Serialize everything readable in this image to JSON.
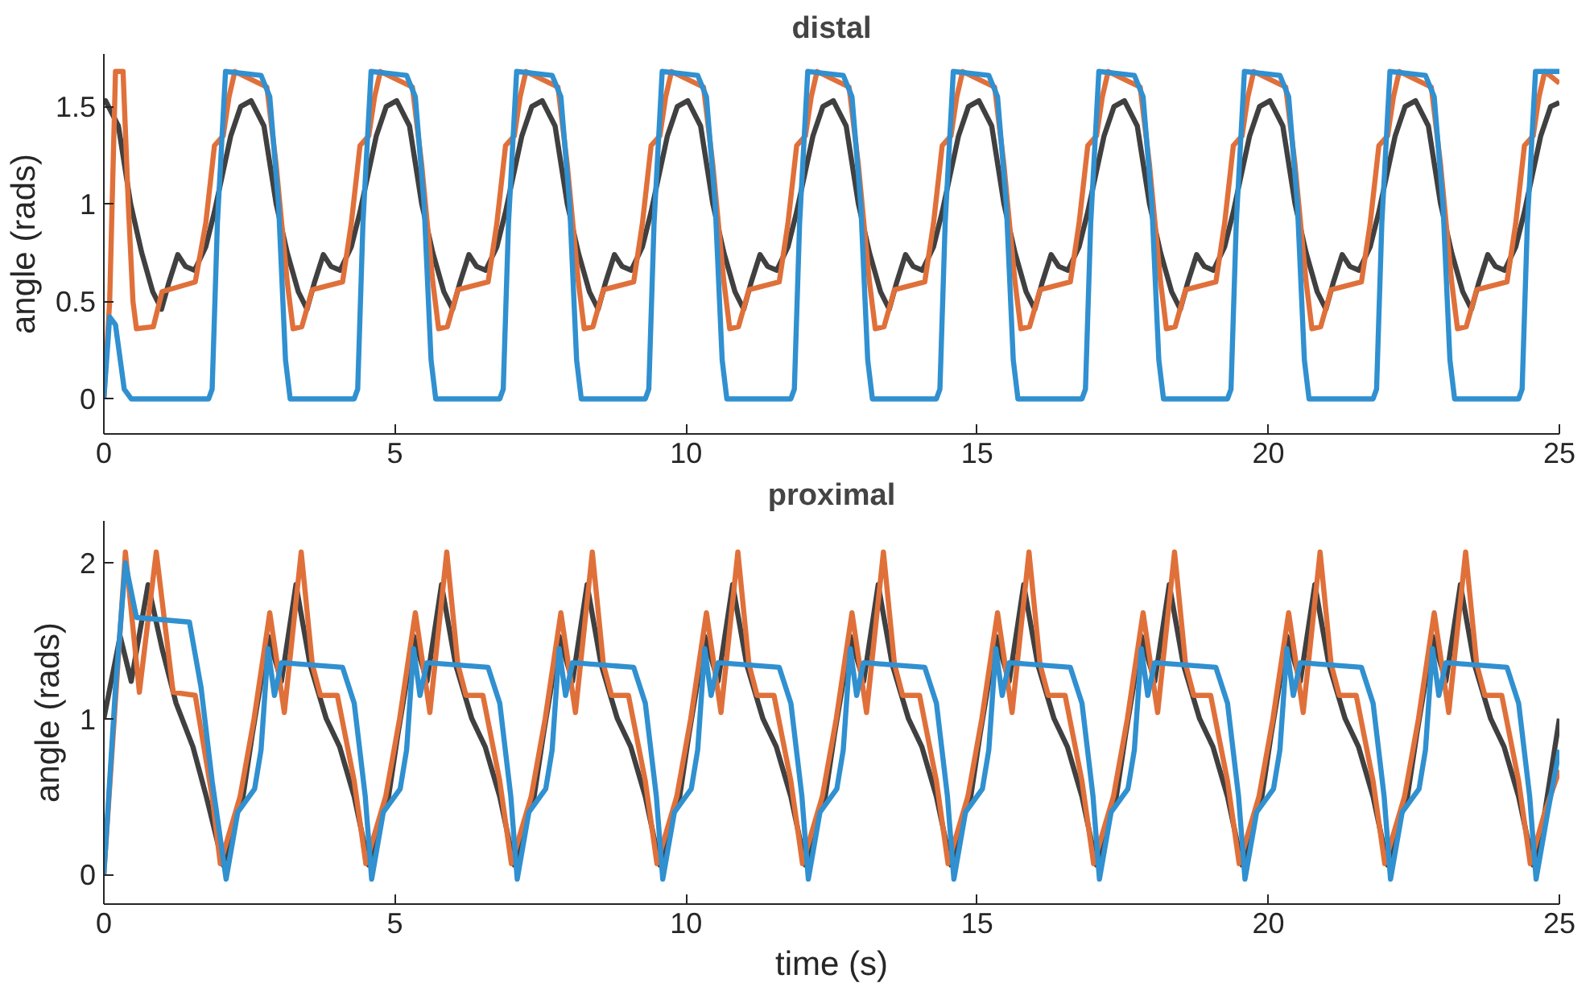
{
  "chart_data": [
    {
      "type": "line",
      "title": "distal",
      "ylabel": "angle (rads)",
      "xlim": [
        0,
        25
      ],
      "xticks": [
        0,
        5,
        10,
        15,
        20,
        25
      ],
      "ylim": [
        -0.18,
        1.77
      ],
      "yticks": [
        0,
        0.5,
        1,
        1.5
      ],
      "series": [
        {
          "color": "#3090d0",
          "x": [
            0,
            0.1,
            0.2,
            0.35,
            0.47,
            1.8,
            1.86,
            1.95,
            2.09,
            2.7,
            2.85,
            3.0,
            3.12,
            3.2,
            4.3,
            4.36,
            4.45,
            4.59,
            5.2,
            5.35,
            5.5,
            5.62,
            5.7,
            6.8,
            6.86,
            6.95,
            7.09,
            7.7,
            7.85,
            8.0,
            8.12,
            8.2,
            9.3,
            9.36,
            9.45,
            9.59,
            10.2,
            10.35,
            10.5,
            10.62,
            10.7,
            11.8,
            11.86,
            11.95,
            12.09,
            12.7,
            12.85,
            13.0,
            13.12,
            13.2,
            14.3,
            14.36,
            14.45,
            14.59,
            15.2,
            15.35,
            15.5,
            15.62,
            15.7,
            16.8,
            16.86,
            16.95,
            17.09,
            17.7,
            17.85,
            18.0,
            18.12,
            18.2,
            19.3,
            19.36,
            19.45,
            19.59,
            20.2,
            20.35,
            20.5,
            20.62,
            20.7,
            21.8,
            21.86,
            21.95,
            22.09,
            22.7,
            22.85,
            23.0,
            23.12,
            23.2,
            24.3,
            24.36,
            24.45,
            24.59,
            25
          ],
          "values": [
            0,
            0.42,
            0.38,
            0.05,
            0,
            0,
            0.05,
            0.9,
            1.68,
            1.66,
            1.55,
            1.0,
            0.2,
            0,
            0,
            0.05,
            0.9,
            1.68,
            1.66,
            1.55,
            1.0,
            0.2,
            0,
            0,
            0.05,
            0.9,
            1.68,
            1.66,
            1.55,
            1.0,
            0.2,
            0,
            0,
            0.05,
            0.9,
            1.68,
            1.66,
            1.55,
            1.0,
            0.2,
            0,
            0,
            0.05,
            0.9,
            1.68,
            1.66,
            1.55,
            1.0,
            0.2,
            0,
            0,
            0.05,
            0.9,
            1.68,
            1.66,
            1.55,
            1.0,
            0.2,
            0,
            0,
            0.05,
            0.9,
            1.68,
            1.66,
            1.55,
            1.0,
            0.2,
            0,
            0,
            0.05,
            0.9,
            1.68,
            1.66,
            1.55,
            1.0,
            0.2,
            0,
            0,
            0.05,
            0.9,
            1.68,
            1.66,
            1.55,
            1.0,
            0.2,
            0,
            0,
            0.05,
            0.9,
            1.68,
            1.68
          ]
        },
        {
          "color": "#404040",
          "x": [
            0,
            0.03,
            0.25,
            0.46,
            0.65,
            0.84,
            0.99,
            1.12,
            1.27,
            1.4,
            1.56,
            1.75,
            1.9,
            2.18,
            2.35,
            2.53,
            2.75,
            2.96,
            3.15,
            3.34,
            3.49,
            3.62,
            3.77,
            3.9,
            4.06,
            4.25,
            4.4,
            4.68,
            4.85,
            5.03,
            5.25,
            5.46,
            5.65,
            5.84,
            5.99,
            6.12,
            6.27,
            6.4,
            6.56,
            6.75,
            6.9,
            7.18,
            7.35,
            7.53,
            7.75,
            7.96,
            8.15,
            8.34,
            8.49,
            8.62,
            8.77,
            8.9,
            9.06,
            9.25,
            9.4,
            9.68,
            9.85,
            10.03,
            10.25,
            10.46,
            10.65,
            10.84,
            10.99,
            11.12,
            11.27,
            11.4,
            11.56,
            11.75,
            11.9,
            12.18,
            12.35,
            12.53,
            12.75,
            12.96,
            13.15,
            13.34,
            13.49,
            13.62,
            13.77,
            13.9,
            14.06,
            14.25,
            14.4,
            14.68,
            14.85,
            15.03,
            15.25,
            15.46,
            15.65,
            15.84,
            15.99,
            16.12,
            16.27,
            16.4,
            16.56,
            16.75,
            16.9,
            17.18,
            17.35,
            17.53,
            17.75,
            17.96,
            18.15,
            18.34,
            18.49,
            18.62,
            18.77,
            18.9,
            19.06,
            19.25,
            19.4,
            19.68,
            19.85,
            20.03,
            20.25,
            20.46,
            20.65,
            20.84,
            20.99,
            21.12,
            21.27,
            21.4,
            21.56,
            21.75,
            21.9,
            22.18,
            22.35,
            22.53,
            22.75,
            22.96,
            23.15,
            23.34,
            23.49,
            23.62,
            23.77,
            23.9,
            24.06,
            24.25,
            24.4,
            24.68,
            24.85,
            25
          ],
          "values": [
            1.52,
            1.53,
            1.4,
            1.0,
            0.75,
            0.55,
            0.46,
            0.6,
            0.74,
            0.68,
            0.66,
            0.78,
            0.96,
            1.35,
            1.5,
            1.53,
            1.4,
            1.0,
            0.75,
            0.55,
            0.46,
            0.6,
            0.74,
            0.68,
            0.66,
            0.78,
            0.96,
            1.35,
            1.5,
            1.53,
            1.4,
            1.0,
            0.75,
            0.55,
            0.46,
            0.6,
            0.74,
            0.68,
            0.66,
            0.78,
            0.96,
            1.35,
            1.5,
            1.53,
            1.4,
            1.0,
            0.75,
            0.55,
            0.46,
            0.6,
            0.74,
            0.68,
            0.66,
            0.78,
            0.96,
            1.35,
            1.5,
            1.53,
            1.4,
            1.0,
            0.75,
            0.55,
            0.46,
            0.6,
            0.74,
            0.68,
            0.66,
            0.78,
            0.96,
            1.35,
            1.5,
            1.53,
            1.4,
            1.0,
            0.75,
            0.55,
            0.46,
            0.6,
            0.74,
            0.68,
            0.66,
            0.78,
            0.96,
            1.35,
            1.5,
            1.53,
            1.4,
            1.0,
            0.75,
            0.55,
            0.46,
            0.6,
            0.74,
            0.68,
            0.66,
            0.78,
            0.96,
            1.35,
            1.5,
            1.53,
            1.4,
            1.0,
            0.75,
            0.55,
            0.46,
            0.6,
            0.74,
            0.68,
            0.66,
            0.78,
            0.96,
            1.35,
            1.5,
            1.53,
            1.4,
            1.0,
            0.75,
            0.55,
            0.46,
            0.6,
            0.74,
            0.68,
            0.66,
            0.78,
            0.96,
            1.35,
            1.5,
            1.53,
            1.4,
            1.0,
            0.75,
            0.55,
            0.46,
            0.6,
            0.74,
            0.68,
            0.66,
            0.78,
            0.96,
            1.35,
            1.5,
            1.52
          ]
        },
        {
          "color": "#e0703a",
          "x": [
            0,
            0.1,
            0.2,
            0.33,
            0.42,
            0.5,
            0.56,
            0.85,
            1.0,
            1.57,
            1.75,
            1.9,
            2.05,
            2.15,
            2.25,
            2.8,
            2.96,
            3.15,
            3.25,
            3.4,
            3.58,
            4.1,
            4.25,
            4.4,
            4.55,
            4.65,
            4.75,
            5.3,
            5.46,
            5.65,
            5.75,
            5.9,
            6.08,
            6.6,
            6.75,
            6.9,
            7.05,
            7.15,
            7.25,
            7.8,
            7.96,
            8.15,
            8.25,
            8.4,
            8.58,
            9.1,
            9.25,
            9.4,
            9.55,
            9.65,
            9.75,
            10.3,
            10.46,
            10.65,
            10.75,
            10.9,
            11.08,
            11.6,
            11.75,
            11.9,
            12.05,
            12.15,
            12.25,
            12.8,
            12.96,
            13.15,
            13.25,
            13.4,
            13.58,
            14.1,
            14.25,
            14.4,
            14.55,
            14.65,
            14.75,
            15.3,
            15.46,
            15.65,
            15.75,
            15.9,
            16.08,
            16.6,
            16.75,
            16.9,
            17.05,
            17.15,
            17.25,
            17.8,
            17.96,
            18.15,
            18.25,
            18.4,
            18.58,
            19.1,
            19.25,
            19.4,
            19.55,
            19.65,
            19.75,
            20.3,
            20.46,
            20.65,
            20.75,
            20.9,
            21.08,
            21.6,
            21.75,
            21.9,
            22.05,
            22.15,
            22.25,
            22.8,
            22.96,
            23.15,
            23.25,
            23.4,
            23.58,
            24.1,
            24.25,
            24.4,
            24.55,
            24.65,
            24.75,
            25
          ],
          "values": [
            0,
            0.5,
            1.68,
            1.68,
            1.0,
            0.5,
            0.36,
            0.37,
            0.55,
            0.6,
            0.9,
            1.3,
            1.35,
            1.55,
            1.68,
            1.6,
            1.2,
            0.6,
            0.36,
            0.37,
            0.56,
            0.6,
            0.9,
            1.3,
            1.35,
            1.55,
            1.68,
            1.6,
            1.2,
            0.6,
            0.36,
            0.37,
            0.56,
            0.6,
            0.9,
            1.3,
            1.35,
            1.55,
            1.68,
            1.6,
            1.2,
            0.6,
            0.36,
            0.37,
            0.56,
            0.6,
            0.9,
            1.3,
            1.35,
            1.55,
            1.68,
            1.6,
            1.2,
            0.6,
            0.36,
            0.37,
            0.56,
            0.6,
            0.9,
            1.3,
            1.35,
            1.55,
            1.68,
            1.6,
            1.2,
            0.6,
            0.36,
            0.37,
            0.56,
            0.6,
            0.9,
            1.3,
            1.35,
            1.55,
            1.68,
            1.6,
            1.2,
            0.6,
            0.36,
            0.37,
            0.56,
            0.6,
            0.9,
            1.3,
            1.35,
            1.55,
            1.68,
            1.6,
            1.2,
            0.6,
            0.36,
            0.37,
            0.56,
            0.6,
            0.9,
            1.3,
            1.35,
            1.55,
            1.68,
            1.6,
            1.2,
            0.6,
            0.36,
            0.37,
            0.56,
            0.6,
            0.9,
            1.3,
            1.35,
            1.55,
            1.68,
            1.6,
            1.2,
            0.6,
            0.36,
            0.37,
            0.56,
            0.6,
            0.9,
            1.3,
            1.35,
            1.55,
            1.68,
            1.62
          ]
        }
      ]
    },
    {
      "type": "line",
      "title": "proximal",
      "xlabel": "time (s)",
      "ylabel": "angle (rads)",
      "xlim": [
        0,
        25
      ],
      "xticks": [
        0,
        5,
        10,
        15,
        20,
        25
      ],
      "ylim": [
        -0.19,
        2.27
      ],
      "yticks": [
        0,
        1,
        2
      ],
      "series": [
        {
          "color": "#3090d0",
          "x": [
            0,
            0.2,
            0.37,
            0.56,
            1.47,
            1.67,
            1.86,
            2.1,
            2.3,
            2.59,
            2.7,
            2.82,
            2.93,
            3.05,
            4.1,
            4.3,
            4.49,
            4.6,
            4.8,
            5.09,
            5.2,
            5.32,
            5.43,
            5.55,
            6.6,
            6.8,
            6.99,
            7.1,
            7.3,
            7.59,
            7.7,
            7.82,
            7.93,
            8.05,
            9.1,
            9.3,
            9.49,
            9.6,
            9.8,
            10.09,
            10.2,
            10.32,
            10.43,
            10.55,
            11.6,
            11.8,
            11.99,
            12.1,
            12.3,
            12.59,
            12.7,
            12.82,
            12.93,
            13.05,
            14.1,
            14.3,
            14.49,
            14.6,
            14.8,
            15.09,
            15.2,
            15.32,
            15.43,
            15.55,
            16.6,
            16.8,
            16.99,
            17.1,
            17.3,
            17.59,
            17.7,
            17.82,
            17.93,
            18.05,
            19.1,
            19.3,
            19.49,
            19.6,
            19.8,
            20.09,
            20.2,
            20.32,
            20.43,
            20.55,
            21.6,
            21.8,
            21.99,
            22.1,
            22.3,
            22.59,
            22.7,
            22.82,
            22.93,
            23.05,
            24.1,
            24.3,
            24.49,
            24.6,
            24.8,
            25
          ],
          "values": [
            0,
            1.2,
            2.0,
            1.65,
            1.62,
            1.2,
            0.6,
            -0.03,
            0.4,
            0.55,
            0.8,
            1.45,
            1.15,
            1.36,
            1.33,
            1.1,
            0.5,
            -0.03,
            0.4,
            0.55,
            0.8,
            1.45,
            1.15,
            1.36,
            1.33,
            1.1,
            0.5,
            -0.03,
            0.4,
            0.55,
            0.8,
            1.45,
            1.15,
            1.36,
            1.33,
            1.1,
            0.5,
            -0.03,
            0.4,
            0.55,
            0.8,
            1.45,
            1.15,
            1.36,
            1.33,
            1.1,
            0.5,
            -0.03,
            0.4,
            0.55,
            0.8,
            1.45,
            1.15,
            1.36,
            1.33,
            1.1,
            0.5,
            -0.03,
            0.4,
            0.55,
            0.8,
            1.45,
            1.15,
            1.36,
            1.33,
            1.1,
            0.5,
            -0.03,
            0.4,
            0.55,
            0.8,
            1.45,
            1.15,
            1.36,
            1.33,
            1.1,
            0.5,
            -0.03,
            0.4,
            0.55,
            0.8,
            1.45,
            1.15,
            1.36,
            1.33,
            1.1,
            0.5,
            -0.03,
            0.4,
            0.55,
            0.8,
            1.45,
            1.15,
            1.36,
            1.33,
            1.1,
            0.5,
            -0.03,
            0.4,
            0.8
          ]
        },
        {
          "color": "#404040",
          "x": [
            0,
            0.28,
            0.47,
            0.76,
            1.0,
            1.24,
            1.53,
            1.76,
            2.05,
            2.2,
            2.39,
            2.55,
            2.67,
            2.82,
            3.05,
            3.3,
            3.54,
            3.82,
            4.05,
            4.3,
            4.55,
            4.7,
            4.89,
            5.05,
            5.17,
            5.32,
            5.55,
            5.8,
            6.04,
            6.32,
            6.55,
            6.8,
            7.05,
            7.2,
            7.39,
            7.55,
            7.67,
            7.82,
            8.05,
            8.3,
            8.54,
            8.82,
            9.05,
            9.3,
            9.55,
            9.7,
            9.89,
            10.05,
            10.17,
            10.32,
            10.55,
            10.8,
            11.04,
            11.32,
            11.55,
            11.8,
            12.05,
            12.2,
            12.39,
            12.55,
            12.67,
            12.82,
            13.05,
            13.3,
            13.54,
            13.82,
            14.05,
            14.3,
            14.55,
            14.7,
            14.89,
            15.05,
            15.17,
            15.32,
            15.55,
            15.8,
            16.04,
            16.32,
            16.55,
            16.8,
            17.05,
            17.2,
            17.39,
            17.55,
            17.67,
            17.82,
            18.05,
            18.3,
            18.54,
            18.82,
            19.05,
            19.3,
            19.55,
            19.7,
            19.89,
            20.05,
            20.17,
            20.32,
            20.55,
            20.8,
            21.04,
            21.32,
            21.55,
            21.8,
            22.05,
            22.2,
            22.39,
            22.55,
            22.67,
            22.82,
            23.05,
            23.3,
            23.54,
            23.82,
            24.05,
            24.3,
            24.55,
            24.75,
            25
          ],
          "values": [
            1.0,
            1.53,
            1.24,
            1.86,
            1.45,
            1.1,
            0.82,
            0.5,
            0.06,
            0.3,
            0.5,
            0.9,
            1.17,
            1.53,
            1.24,
            1.86,
            1.35,
            1.0,
            0.82,
            0.5,
            0.06,
            0.3,
            0.5,
            0.9,
            1.17,
            1.53,
            1.24,
            1.86,
            1.35,
            1.0,
            0.82,
            0.5,
            0.06,
            0.3,
            0.5,
            0.9,
            1.17,
            1.53,
            1.24,
            1.86,
            1.35,
            1.0,
            0.82,
            0.5,
            0.06,
            0.3,
            0.5,
            0.9,
            1.17,
            1.53,
            1.24,
            1.86,
            1.35,
            1.0,
            0.82,
            0.5,
            0.06,
            0.3,
            0.5,
            0.9,
            1.17,
            1.53,
            1.24,
            1.86,
            1.35,
            1.0,
            0.82,
            0.5,
            0.06,
            0.3,
            0.5,
            0.9,
            1.17,
            1.53,
            1.24,
            1.86,
            1.35,
            1.0,
            0.82,
            0.5,
            0.06,
            0.3,
            0.5,
            0.9,
            1.17,
            1.53,
            1.24,
            1.86,
            1.35,
            1.0,
            0.82,
            0.5,
            0.06,
            0.3,
            0.5,
            0.9,
            1.17,
            1.53,
            1.24,
            1.86,
            1.35,
            1.0,
            0.82,
            0.5,
            0.06,
            0.3,
            0.5,
            0.9,
            1.17,
            1.53,
            1.24,
            1.86,
            1.35,
            1.0,
            0.82,
            0.5,
            0.06,
            0.4,
            1.0
          ]
        },
        {
          "color": "#e0703a",
          "x": [
            0,
            0.37,
            0.61,
            0.9,
            1.19,
            1.57,
            1.86,
            2.0,
            2.34,
            2.58,
            2.85,
            3.1,
            3.39,
            3.58,
            3.72,
            4.01,
            4.3,
            4.5,
            4.84,
            5.08,
            5.35,
            5.6,
            5.89,
            6.08,
            6.22,
            6.51,
            6.8,
            7.0,
            7.34,
            7.58,
            7.85,
            8.1,
            8.39,
            8.58,
            8.72,
            9.01,
            9.3,
            9.5,
            9.84,
            10.08,
            10.35,
            10.6,
            10.89,
            11.08,
            11.22,
            11.51,
            11.8,
            12.0,
            12.34,
            12.58,
            12.85,
            13.1,
            13.39,
            13.58,
            13.72,
            14.01,
            14.3,
            14.5,
            14.84,
            15.08,
            15.35,
            15.6,
            15.89,
            16.08,
            16.22,
            16.51,
            16.8,
            17.0,
            17.34,
            17.58,
            17.85,
            18.1,
            18.39,
            18.58,
            18.72,
            19.01,
            19.3,
            19.5,
            19.84,
            20.08,
            20.35,
            20.6,
            20.89,
            21.08,
            21.22,
            21.51,
            21.8,
            22.0,
            22.34,
            22.58,
            22.85,
            23.1,
            23.39,
            23.58,
            23.72,
            24.01,
            24.3,
            24.5,
            24.75,
            25
          ],
          "values": [
            0,
            2.07,
            1.17,
            2.07,
            1.17,
            1.15,
            0.5,
            0.07,
            0.5,
            1.0,
            1.68,
            1.04,
            2.07,
            1.35,
            1.15,
            1.15,
            0.6,
            0.07,
            0.5,
            1.0,
            1.68,
            1.04,
            2.07,
            1.35,
            1.15,
            1.15,
            0.6,
            0.07,
            0.5,
            1.0,
            1.68,
            1.04,
            2.07,
            1.35,
            1.15,
            1.15,
            0.6,
            0.07,
            0.5,
            1.0,
            1.68,
            1.04,
            2.07,
            1.35,
            1.15,
            1.15,
            0.6,
            0.07,
            0.5,
            1.0,
            1.68,
            1.04,
            2.07,
            1.35,
            1.15,
            1.15,
            0.6,
            0.07,
            0.5,
            1.0,
            1.68,
            1.04,
            2.07,
            1.35,
            1.15,
            1.15,
            0.6,
            0.07,
            0.5,
            1.0,
            1.68,
            1.04,
            2.07,
            1.35,
            1.15,
            1.15,
            0.6,
            0.07,
            0.5,
            1.0,
            1.68,
            1.04,
            2.07,
            1.35,
            1.15,
            1.15,
            0.6,
            0.07,
            0.5,
            1.0,
            1.68,
            1.04,
            2.07,
            1.35,
            1.15,
            1.15,
            0.6,
            0.07,
            0.4,
            0.67
          ]
        }
      ]
    }
  ]
}
